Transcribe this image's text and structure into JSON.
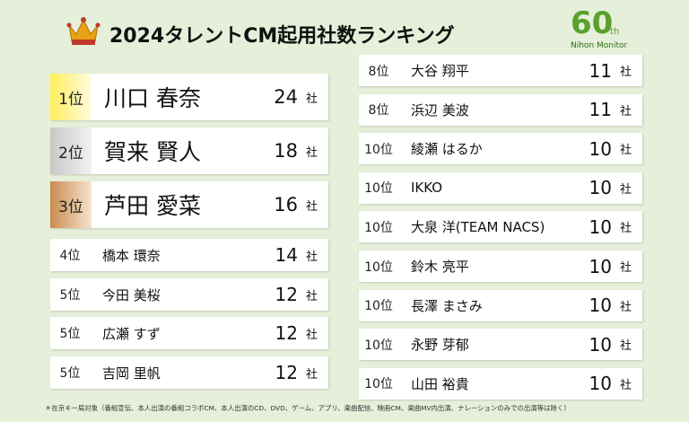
{
  "header": {
    "title": "2024タレントCM起用社数ランキング",
    "logo_number": "60",
    "logo_suffix": "th",
    "logo_name": "Nihon Monitor"
  },
  "unit": "社",
  "left_rows": [
    {
      "rank": "1位",
      "name": "川口 春奈",
      "count": 24
    },
    {
      "rank": "2位",
      "name": "賀来 賢人",
      "count": 18
    },
    {
      "rank": "3位",
      "name": "芦田 愛菜",
      "count": 16
    },
    {
      "rank": "4位",
      "name": "橋本 環奈",
      "count": 14
    },
    {
      "rank": "5位",
      "name": "今田 美桜",
      "count": 12
    },
    {
      "rank": "5位",
      "name": "広瀬 すず",
      "count": 12
    },
    {
      "rank": "5位",
      "name": "吉岡 里帆",
      "count": 12
    }
  ],
  "right_rows": [
    {
      "rank": "8位",
      "name": "大谷 翔平",
      "count": 11
    },
    {
      "rank": "8位",
      "name": "浜辺 美波",
      "count": 11
    },
    {
      "rank": "10位",
      "name": "綾瀬 はるか",
      "count": 10
    },
    {
      "rank": "10位",
      "name": "IKKO",
      "count": 10
    },
    {
      "rank": "10位",
      "name": "大泉 洋(TEAM NACS)",
      "count": 10
    },
    {
      "rank": "10位",
      "name": "鈴木 亮平",
      "count": 10
    },
    {
      "rank": "10位",
      "name": "長澤 まさみ",
      "count": 10
    },
    {
      "rank": "10位",
      "name": "永野 芽郁",
      "count": 10
    },
    {
      "rank": "10位",
      "name": "山田 裕貴",
      "count": 10
    }
  ],
  "footnote": "＊在京キー局対象（番組宣伝、本人出演の番組コラボCM、本人出演のCD、DVD、ゲーム、アプリ、楽曲配信、映画CM、楽曲MV内出演、ナレーションのみでの出演等は除く）"
}
